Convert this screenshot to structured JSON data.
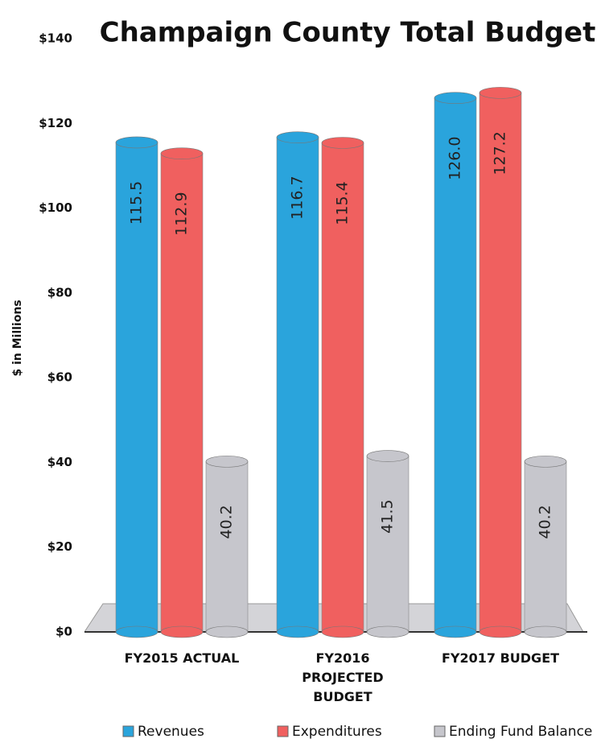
{
  "chart_data": {
    "type": "bar",
    "title": "Champaign County Total Budget",
    "ylabel": "$ in Millions",
    "categories": [
      "FY2015 ACTUAL",
      "FY2016 PROJECTED BUDGET",
      "FY2017 BUDGET"
    ],
    "series": [
      {
        "name": "Revenues",
        "color": "#2aa4dc",
        "values": [
          115.5,
          116.7,
          126.0
        ],
        "value_labels": [
          "115.5",
          "116.7",
          "126.0"
        ]
      },
      {
        "name": "Expenditures",
        "color": "#f0605f",
        "values": [
          112.9,
          115.4,
          127.2
        ],
        "value_labels": [
          "112.9",
          "115.4",
          "127.2"
        ]
      },
      {
        "name": "Ending Fund Balance",
        "color": "#c6c6cc",
        "values": [
          40.2,
          41.5,
          40.2
        ],
        "value_labels": [
          "40.2",
          "41.5",
          "40.2"
        ]
      }
    ],
    "ylim": [
      0,
      140
    ],
    "yticks": [
      {
        "value": 0,
        "label": "$0"
      },
      {
        "value": 20,
        "label": "$20"
      },
      {
        "value": 40,
        "label": "$40"
      },
      {
        "value": 60,
        "label": "$60"
      },
      {
        "value": 80,
        "label": "$80"
      },
      {
        "value": 100,
        "label": "$100"
      },
      {
        "value": 120,
        "label": "$120"
      },
      {
        "value": 140,
        "label": "$140"
      }
    ]
  }
}
